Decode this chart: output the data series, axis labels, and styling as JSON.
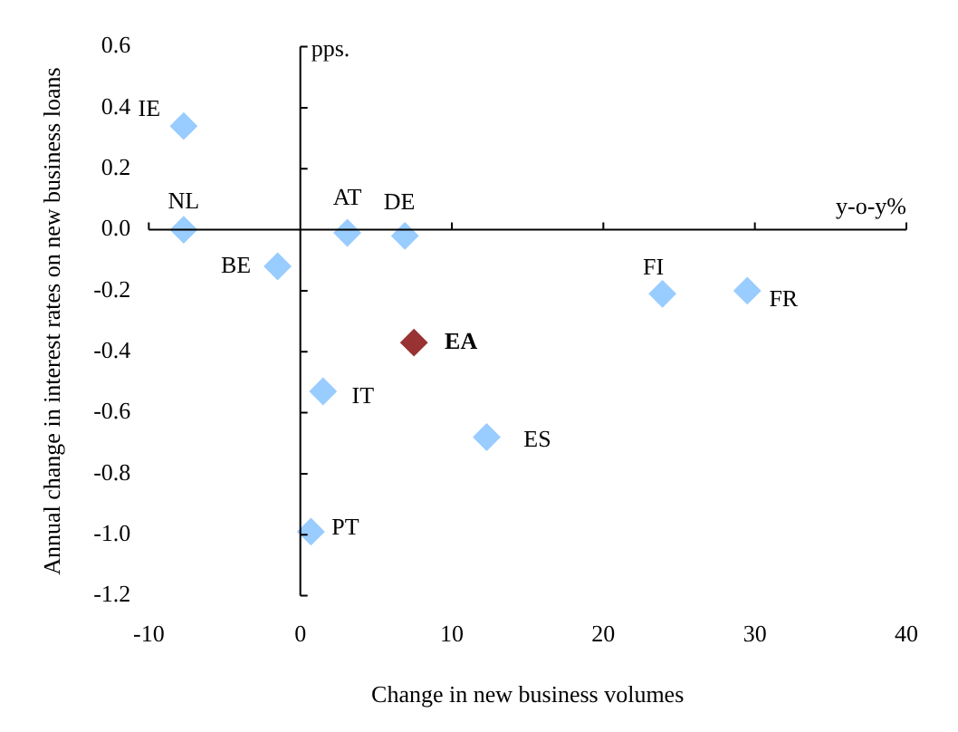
{
  "chart_data": {
    "type": "scatter",
    "xlabel": "Change in new business volumes",
    "ylabel": "Annual change in interest rates on new business loans",
    "xlim": [
      -10,
      40
    ],
    "xticks": [
      -10,
      0,
      10,
      20,
      30,
      40
    ],
    "ylim": [
      -1.2,
      0.6
    ],
    "yticks": [
      {
        "value": -1.2,
        "label": "-1.2"
      },
      {
        "value": -1,
        "label": "-1.0"
      },
      {
        "value": -0.8,
        "label": "-0.8"
      },
      {
        "value": -0.6,
        "label": "-0.6"
      },
      {
        "value": -0.4,
        "label": "-0.4"
      },
      {
        "value": -0.2,
        "label": "-0.2"
      },
      {
        "value": 0,
        "label": "0.0"
      },
      {
        "value": 0.2,
        "label": "0.2"
      },
      {
        "value": 0.4,
        "label": "0.4"
      },
      {
        "value": 0.6,
        "label": "0.6"
      }
    ],
    "legend": false,
    "marker": "diamond",
    "series": [
      {
        "color": "#99ccff",
        "x": [
          -7.7,
          -7.7,
          3.1,
          6.9,
          -1.5,
          23.9,
          29.5,
          1.5,
          12.3,
          0.7
        ],
        "values": [
          0.34,
          0,
          -0.01,
          -0.02,
          -0.12,
          -0.21,
          -0.2,
          -0.53,
          -0.68,
          -0.99
        ]
      },
      {
        "color": "#993333",
        "x": [
          7.5
        ],
        "values": [
          -0.37
        ]
      }
    ],
    "annotations": [
      "pps.",
      "y-o-y%",
      {
        "text": "IE",
        "x": -7.7,
        "y": 0.34
      },
      {
        "text": "NL",
        "x": -7.7,
        "y": 0
      },
      {
        "text": "AT",
        "x": 3.1,
        "y": -0.01
      },
      {
        "text": "DE",
        "x": 6.9,
        "y": -0.02
      },
      {
        "text": "BE",
        "x": -1.5,
        "y": -0.12
      },
      {
        "text": "FI",
        "x": 23.9,
        "y": -0.21
      },
      {
        "text": "FR",
        "x": 29.5,
        "y": -0.2
      },
      {
        "text": "IT",
        "x": 1.5,
        "y": -0.53
      },
      {
        "text": "ES",
        "x": 12.3,
        "y": -0.68
      },
      {
        "text": "PT",
        "x": 0.7,
        "y": -0.99
      },
      {
        "text": "EA",
        "x": 7.5,
        "y": -0.37
      }
    ]
  }
}
